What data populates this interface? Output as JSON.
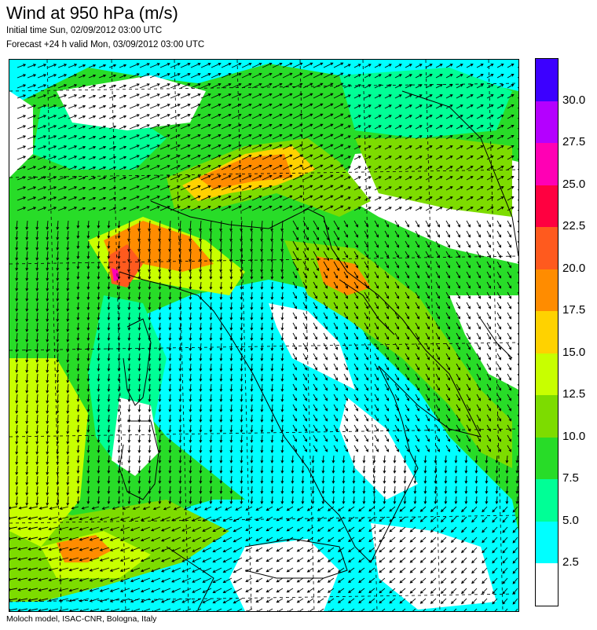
{
  "header": {
    "title": "Wind at 950 hPa (m/s)",
    "initial_time": "Initial time  Sun, 02/09/2012 03:00 UTC",
    "forecast": "Forecast +24 h valid  Mon, 03/09/2012 03:00 UTC"
  },
  "footer": {
    "credit": "Moloch model, ISAC-CNR, Bologna, Italy"
  },
  "legend": {
    "labels": [
      "30.0",
      "27.5",
      "25.0",
      "22.5",
      "20.0",
      "17.5",
      "15.0",
      "12.5",
      "10.0",
      "7.5",
      "5.0",
      "2.5"
    ],
    "colors": [
      "#3c00ff",
      "#b400ff",
      "#ff00b4",
      "#ff0040",
      "#ff5a1e",
      "#ff8c00",
      "#ffd200",
      "#c8ff00",
      "#7ddc00",
      "#28dc28",
      "#00ff96",
      "#00ffff",
      "#ffffff"
    ]
  },
  "map": {
    "palette": {
      "white": "#ffffff",
      "cyan": "#00ffff",
      "aqua": "#00ff96",
      "green": "#28dc28",
      "mid_green": "#7ddc00",
      "yellow_green": "#c8ff00",
      "yellow": "#ffd200",
      "orange": "#ff8c00",
      "red_orange": "#ff5a1e",
      "magenta": "#ff00b4"
    }
  }
}
